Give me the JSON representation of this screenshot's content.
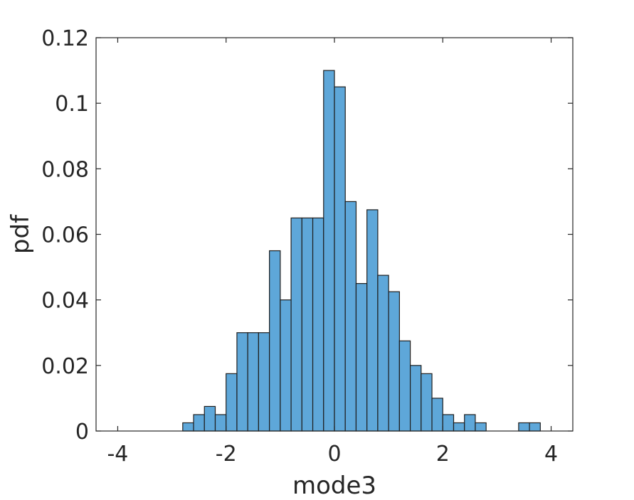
{
  "chart_data": {
    "type": "bar",
    "subtype": "histogram",
    "title": "",
    "xlabel": "mode3",
    "ylabel": "pdf",
    "xlim": [
      -4.4,
      4.4
    ],
    "ylim": [
      0,
      0.12
    ],
    "xticks": [
      -4,
      -2,
      0,
      2,
      4
    ],
    "xtick_labels": [
      "-4",
      "-2",
      "0",
      "2",
      "4"
    ],
    "yticks": [
      0,
      0.02,
      0.04,
      0.06,
      0.08,
      0.1,
      0.12
    ],
    "ytick_labels": [
      "0",
      "0.02",
      "0.04",
      "0.06",
      "0.08",
      "0.1",
      "0.12"
    ],
    "grid": false,
    "bin_width": 0.2,
    "bin_edges_start": -4.0,
    "values": [
      0,
      0,
      0,
      0,
      0,
      0,
      0.0025,
      0.005,
      0.0075,
      0.005,
      0.0175,
      0.03,
      0.03,
      0.03,
      0.055,
      0.04,
      0.065,
      0.065,
      0.065,
      0.11,
      0.105,
      0.07,
      0.045,
      0.0675,
      0.0475,
      0.0425,
      0.0275,
      0.02,
      0.0175,
      0.01,
      0.005,
      0.0025,
      0.005,
      0.0025,
      0,
      0,
      0,
      0.0025,
      0.0025,
      0
    ],
    "colors": {
      "bar_fill": "#5ea7d9",
      "bar_edge": "#1f1f1f",
      "axis": "#262626"
    }
  }
}
